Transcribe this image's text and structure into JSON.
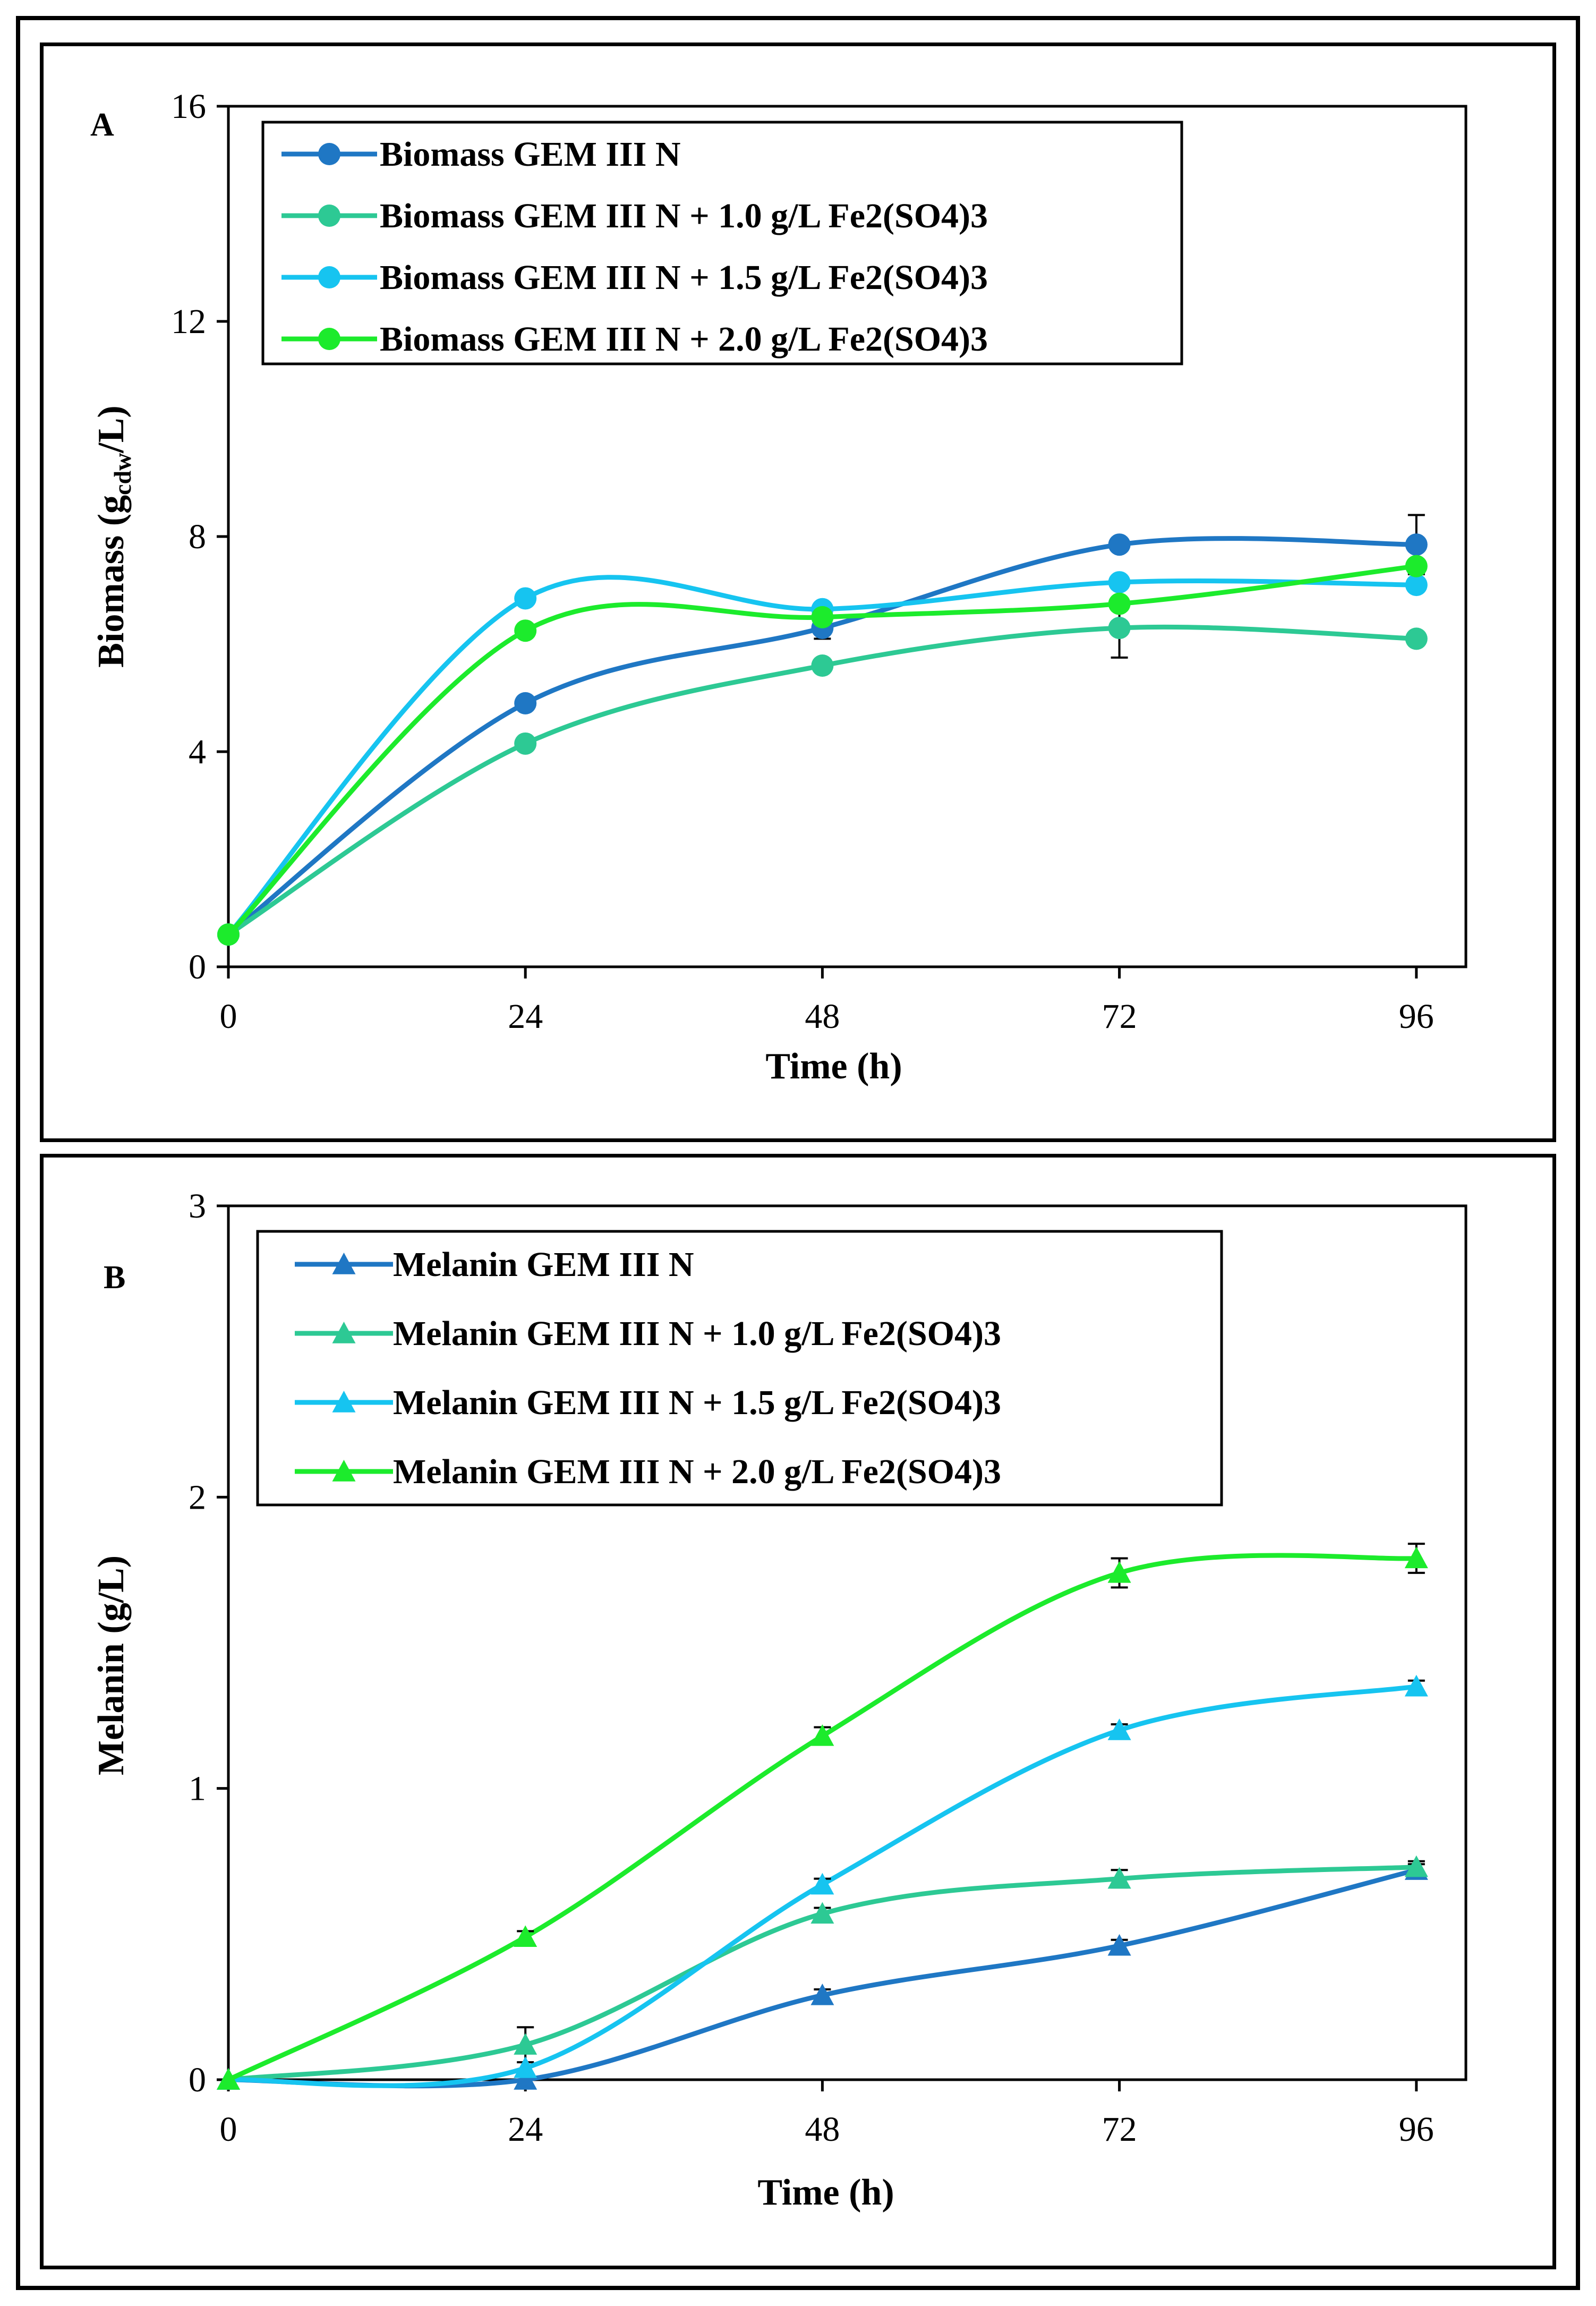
{
  "chart_data": [
    {
      "type": "line",
      "panel_label": "A",
      "title": "",
      "xlabel": "Time (h)",
      "ylabel_main": "Biomass  (g",
      "ylabel_sub": "cdw",
      "ylabel_end": "/L)",
      "x": [
        0,
        24,
        48,
        72,
        96
      ],
      "xticks": [
        "0",
        "24",
        "48",
        "72",
        "96"
      ],
      "yticks": [
        "0",
        "4",
        "8",
        "12",
        "16"
      ],
      "ytick_values": [
        0,
        4,
        8,
        12,
        16
      ],
      "xlim": [
        0,
        100
      ],
      "ylim": [
        0,
        16
      ],
      "marker": "circle",
      "legend_position": "top-left",
      "series": [
        {
          "name": "Biomass GEM III N",
          "color": "#1F77C4",
          "values": [
            0.6,
            4.9,
            6.3,
            7.85,
            7.85
          ],
          "errors": [
            0,
            0,
            0.2,
            0.1,
            0.55
          ]
        },
        {
          "name": "Biomass GEM III N + 1.0 g/L Fe2(SO4)3",
          "color": "#2DC994",
          "values": [
            0.6,
            4.15,
            5.6,
            6.3,
            6.1
          ],
          "errors": [
            0,
            0,
            0,
            0.55,
            0
          ]
        },
        {
          "name": "Biomass GEM III N + 1.5 g/L Fe2(SO4)3",
          "color": "#16C4F0",
          "values": [
            0.6,
            6.85,
            6.65,
            7.15,
            7.1
          ],
          "errors": [
            0,
            0,
            0,
            0,
            0
          ]
        },
        {
          "name": "Biomass GEM III N + 2.0 g/L Fe2(SO4)3",
          "color": "#1CEB2C",
          "values": [
            0.6,
            6.25,
            6.5,
            6.75,
            7.45
          ],
          "errors": [
            0,
            0,
            0,
            0,
            0
          ]
        }
      ]
    },
    {
      "type": "line",
      "panel_label": "B",
      "title": "",
      "xlabel": "Time (h)",
      "ylabel": "Melanin  (g/L)",
      "x": [
        0,
        24,
        48,
        72,
        96
      ],
      "xticks": [
        "0",
        "24",
        "48",
        "72",
        "96"
      ],
      "yticks": [
        "0",
        "1",
        "2",
        "3"
      ],
      "ytick_values": [
        0,
        1,
        2,
        3
      ],
      "xlim": [
        0,
        100
      ],
      "ylim": [
        0,
        3
      ],
      "marker": "triangle",
      "legend_position": "top-left",
      "series": [
        {
          "name": "Melanin GEM III N",
          "color": "#1F77C4",
          "values": [
            0,
            0,
            0.29,
            0.46,
            0.72
          ],
          "errors": [
            0,
            0,
            0.02,
            0.02,
            0.02
          ]
        },
        {
          "name": "Melanin GEM III N + 1.0 g/L Fe2(SO4)3",
          "color": "#2DC994",
          "values": [
            0,
            0.12,
            0.57,
            0.69,
            0.73
          ],
          "errors": [
            0,
            0.06,
            0.02,
            0.03,
            0.02
          ]
        },
        {
          "name": "Melanin GEM III N + 1.5 g/L Fe2(SO4)3",
          "color": "#16C4F0",
          "values": [
            0,
            0.04,
            0.67,
            1.2,
            1.35
          ],
          "errors": [
            0,
            0,
            0.02,
            0.02,
            0.02
          ]
        },
        {
          "name": "Melanin GEM III N + 2.0 g/L Fe2(SO4)3",
          "color": "#1CEB2C",
          "values": [
            0,
            0.49,
            1.18,
            1.74,
            1.79
          ],
          "errors": [
            0,
            0.02,
            0.03,
            0.05,
            0.05
          ]
        }
      ]
    }
  ]
}
